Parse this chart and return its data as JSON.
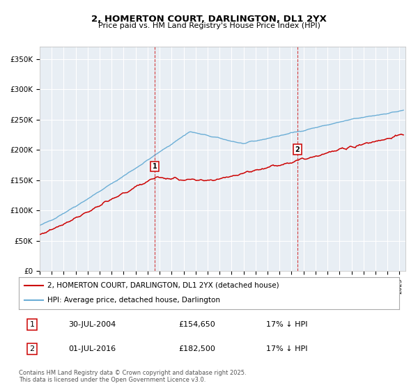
{
  "title": "2, HOMERTON COURT, DARLINGTON, DL1 2YX",
  "subtitle": "Price paid vs. HM Land Registry's House Price Index (HPI)",
  "xlim_start": 1995.0,
  "xlim_end": 2025.5,
  "ylim": [
    0,
    370000
  ],
  "yticks": [
    0,
    50000,
    100000,
    150000,
    200000,
    250000,
    300000,
    350000
  ],
  "ytick_labels": [
    "£0",
    "£50K",
    "£100K",
    "£150K",
    "£200K",
    "£250K",
    "£300K",
    "£350K"
  ],
  "xticks": [
    1995,
    1996,
    1997,
    1998,
    1999,
    2000,
    2001,
    2002,
    2003,
    2004,
    2005,
    2006,
    2007,
    2008,
    2009,
    2010,
    2011,
    2012,
    2013,
    2014,
    2015,
    2016,
    2017,
    2018,
    2019,
    2020,
    2021,
    2022,
    2023,
    2024,
    2025
  ],
  "hpi_color": "#6baed6",
  "price_color": "#cc0000",
  "vline_color": "#cc0000",
  "transaction1_x": 2004.58,
  "transaction1_y": 154650,
  "transaction2_x": 2016.5,
  "transaction2_y": 182500,
  "legend_line1": "2, HOMERTON COURT, DARLINGTON, DL1 2YX (detached house)",
  "legend_line2": "HPI: Average price, detached house, Darlington",
  "table_row1": [
    "1",
    "30-JUL-2004",
    "£154,650",
    "17% ↓ HPI"
  ],
  "table_row2": [
    "2",
    "01-JUL-2016",
    "£182,500",
    "17% ↓ HPI"
  ],
  "footer": "Contains HM Land Registry data © Crown copyright and database right 2025.\nThis data is licensed under the Open Government Licence v3.0.",
  "bg_color": "#e8eef4"
}
